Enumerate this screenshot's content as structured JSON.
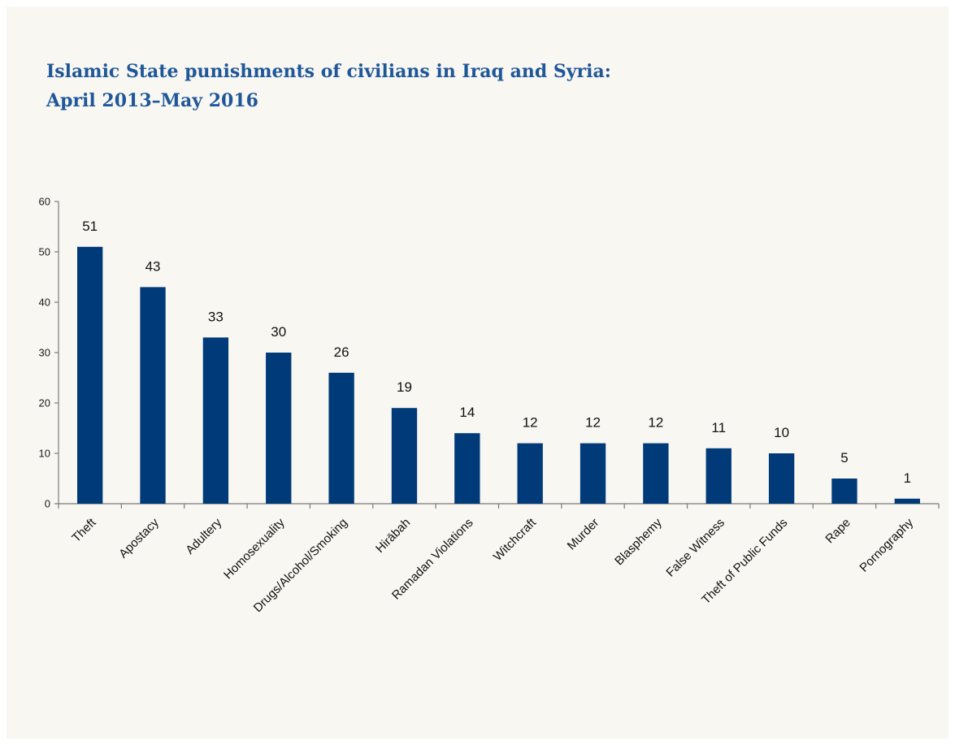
{
  "chart_data": {
    "type": "bar",
    "title_lines": [
      "Islamic State punishments of civilians in Iraq and Syria:",
      "April 2013–May 2016"
    ],
    "categories": [
      "Theft",
      "Apostacy",
      "Adultery",
      "Homosexuality",
      "Drugs/Alcohol/Smoking",
      "Hirābah",
      "Ramadan Violations",
      "Witchcraft",
      "Murder",
      "Blasphemy",
      "False Witness",
      "Theft of Public Funds",
      "Rape",
      "Pornography"
    ],
    "values": [
      51,
      43,
      33,
      30,
      26,
      19,
      14,
      12,
      12,
      12,
      11,
      10,
      5,
      1
    ],
    "ylim": [
      0,
      60
    ],
    "yticks": [
      0,
      10,
      20,
      30,
      40,
      50,
      60
    ],
    "bar_color": "#003a78",
    "title_color": "#1f5798",
    "grid": false,
    "legend": "none",
    "data_labels": true
  }
}
